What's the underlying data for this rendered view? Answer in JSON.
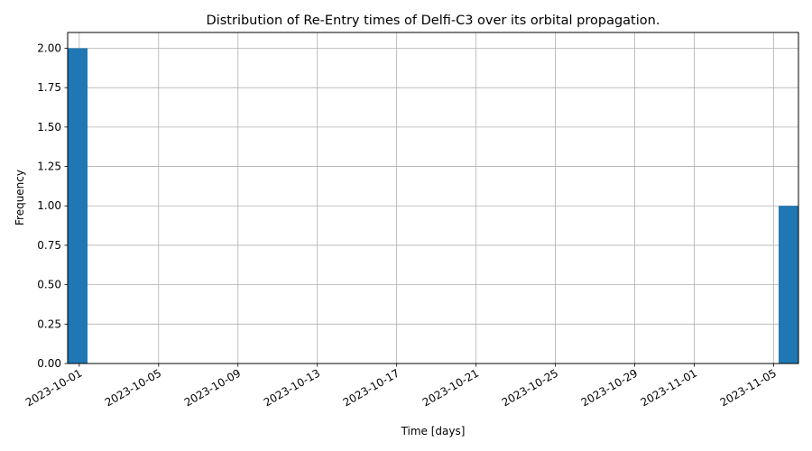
{
  "chart_data": {
    "type": "bar",
    "title": "Distribution of Re-Entry times of Delfi-C3 over its orbital propagation.",
    "xlabel": "Time [days]",
    "ylabel": "Frequency",
    "x_type": "date",
    "xlim": [
      "2023-09-30T10:00:00",
      "2023-11-06T06:00:00"
    ],
    "ylim": [
      0,
      2.1
    ],
    "grid": true,
    "bar_color": "#1f77b4",
    "bars": [
      {
        "x_start": "2023-09-30T10:00:00",
        "x_end": "2023-10-01T10:00:00",
        "value": 2
      },
      {
        "x_start": "2023-11-05T06:00:00",
        "x_end": "2023-11-06T06:00:00",
        "value": 1
      }
    ],
    "x_ticks": [
      "2023-10-01",
      "2023-10-05",
      "2023-10-09",
      "2023-10-13",
      "2023-10-17",
      "2023-10-21",
      "2023-10-25",
      "2023-10-29",
      "2023-11-01",
      "2023-11-05"
    ],
    "y_ticks": [
      "0.00",
      "0.25",
      "0.50",
      "0.75",
      "1.00",
      "1.25",
      "1.50",
      "1.75",
      "2.00"
    ]
  }
}
